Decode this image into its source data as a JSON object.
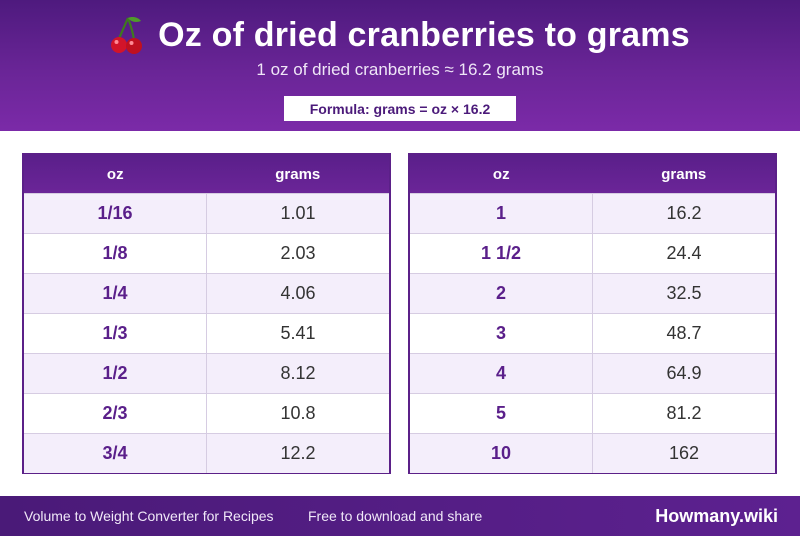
{
  "header": {
    "icon": "cherry-icon",
    "title": "Oz of dried cranberries to grams",
    "subtitle": "1 oz of dried cranberries ≈ 16.2 grams",
    "formula": "Formula: grams = oz × 16.2"
  },
  "tables": [
    {
      "headers": [
        "oz",
        "grams"
      ],
      "rows": [
        [
          "1/16",
          "1.01"
        ],
        [
          "1/8",
          "2.03"
        ],
        [
          "1/4",
          "4.06"
        ],
        [
          "1/3",
          "5.41"
        ],
        [
          "1/2",
          "8.12"
        ],
        [
          "2/3",
          "10.8"
        ],
        [
          "3/4",
          "12.2"
        ]
      ]
    },
    {
      "headers": [
        "oz",
        "grams"
      ],
      "rows": [
        [
          "1",
          "16.2"
        ],
        [
          "1 1/2",
          "24.4"
        ],
        [
          "2",
          "32.5"
        ],
        [
          "3",
          "48.7"
        ],
        [
          "4",
          "64.9"
        ],
        [
          "5",
          "81.2"
        ],
        [
          "10",
          "162"
        ]
      ]
    }
  ],
  "footer": {
    "left": "Volume to Weight Converter for Recipes",
    "middle": "Free to download and share",
    "brand": "Howmany.wiki"
  },
  "colors": {
    "header_purple": "#6a2597",
    "accent_text": "#5a1f8a",
    "row_alt": "#f4eefb"
  }
}
